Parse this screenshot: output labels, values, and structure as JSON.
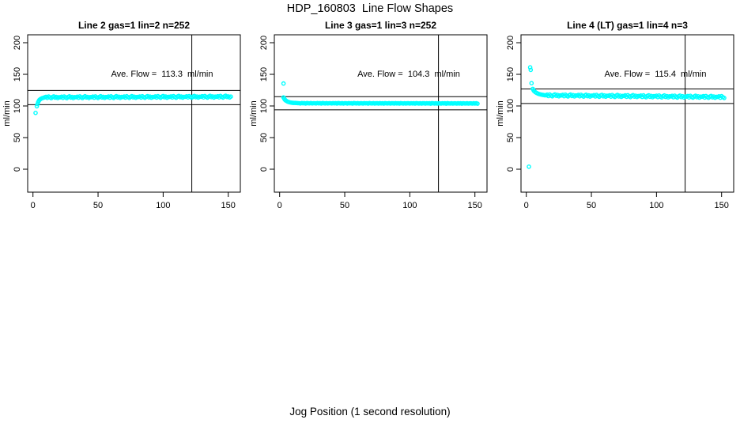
{
  "page_title": "HDP_160803  Line Flow Shapes",
  "x_axis_label": "Jog Position (1 second resolution)",
  "colors": {
    "point": "#00FFFF",
    "axis": "#000000",
    "background": "#FFFFFF"
  },
  "chart_data": [
    {
      "type": "scatter",
      "title": "Line 2 gas=1 lin=2 n=252",
      "ylabel": "ml/min",
      "ave_flow_label": "Ave. Flow =  113.3  ml/min",
      "ave_flow": 113.3,
      "n": 252,
      "xlim": [
        0,
        155
      ],
      "ylim": [
        0,
        200
      ],
      "x_ticks": [
        0,
        50,
        100,
        150
      ],
      "y_ticks": [
        0,
        50,
        100,
        150,
        200
      ],
      "ref_vline_x": 122,
      "ref_hlines": [
        124.6,
        102.0
      ],
      "outlier_points": [
        [
          2,
          89
        ]
      ],
      "ramp_points": [
        [
          3,
          99.5
        ],
        [
          3.5,
          103
        ],
        [
          4,
          106
        ],
        [
          4.5,
          108
        ],
        [
          5,
          109.5
        ],
        [
          5.5,
          110.5
        ],
        [
          6,
          111.3
        ],
        [
          7,
          112.2
        ],
        [
          8,
          112.9
        ]
      ],
      "band": {
        "x_start": 9,
        "x_end": 152,
        "x_step": 1,
        "base_start": 113.3,
        "base_end": 114.3,
        "noise_cycle": [
          0.3,
          1.2,
          -0.6,
          1.6,
          0.2,
          -1.0,
          0.8,
          1.8,
          -0.2,
          0.9,
          -0.9,
          0.5
        ]
      }
    },
    {
      "type": "scatter",
      "title": "Line 3 gas=1 lin=3 n=252",
      "ylabel": "ml/min",
      "ave_flow_label": "Ave. Flow =  104.3  ml/min",
      "ave_flow": 104.3,
      "n": 252,
      "xlim": [
        0,
        155
      ],
      "ylim": [
        0,
        200
      ],
      "x_ticks": [
        0,
        50,
        100,
        150
      ],
      "y_ticks": [
        0,
        50,
        100,
        150,
        200
      ],
      "ref_vline_x": 122,
      "ref_hlines": [
        114.7,
        93.9
      ],
      "outlier_points": [
        [
          3,
          135.5
        ]
      ],
      "ramp_points": [
        [
          3,
          113.5
        ],
        [
          3.5,
          111.5
        ],
        [
          4,
          110
        ],
        [
          4.5,
          109
        ],
        [
          5,
          108.2
        ],
        [
          6,
          107
        ],
        [
          7,
          106.2
        ],
        [
          8,
          105.6
        ],
        [
          9,
          105.2
        ],
        [
          10,
          104.9
        ],
        [
          11,
          104.8
        ],
        [
          12,
          104.7
        ],
        [
          13,
          104.6
        ],
        [
          14,
          104.5
        ]
      ],
      "band": {
        "x_start": 15,
        "x_end": 152,
        "x_step": 1,
        "base_start": 104.3,
        "base_end": 104.0,
        "noise_cycle": [
          0.1,
          -0.3,
          0.3,
          -0.1,
          0.2,
          -0.4,
          0.4,
          0.0,
          -0.2,
          0.3,
          -0.3,
          0.1
        ]
      }
    },
    {
      "type": "scatter",
      "title": "Line 4 (LT) gas=1 lin=4 n=3",
      "ylabel": "ml/min",
      "ave_flow_label": "Ave. Flow =  115.4  ml/min",
      "ave_flow": 115.4,
      "n": 3,
      "xlim": [
        0,
        155
      ],
      "ylim": [
        0,
        200
      ],
      "x_ticks": [
        0,
        50,
        100,
        150
      ],
      "y_ticks": [
        0,
        50,
        100,
        150,
        200
      ],
      "ref_vline_x": 122,
      "ref_hlines": [
        126.9,
        103.9
      ],
      "outlier_points": [
        [
          2,
          4
        ],
        [
          3,
          161
        ],
        [
          3.4,
          157
        ],
        [
          4,
          136
        ]
      ],
      "ramp_points": [
        [
          5,
          127
        ],
        [
          5.5,
          125
        ],
        [
          6,
          123.5
        ],
        [
          7,
          121.8
        ],
        [
          8,
          120.5
        ],
        [
          9,
          119.5
        ],
        [
          10,
          118.8
        ],
        [
          11,
          118.2
        ],
        [
          12,
          117.8
        ],
        [
          13,
          117.4
        ],
        [
          14,
          117
        ]
      ],
      "band": {
        "x_start": 15,
        "x_end": 152,
        "x_step": 1,
        "base_start": 116.5,
        "base_end": 113.8,
        "noise_cycle": [
          0.4,
          1.4,
          -0.8,
          1.7,
          0.0,
          -1.2,
          0.9,
          1.9,
          -0.4,
          1.0,
          -1.0,
          0.6
        ]
      }
    }
  ]
}
